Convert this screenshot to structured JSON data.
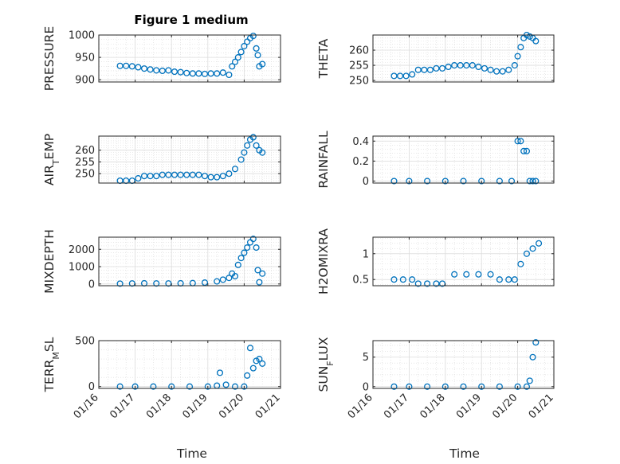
{
  "figure": {
    "title": "Figure 1 medium",
    "xlabel": "Time",
    "marker_color": "#0072BD"
  },
  "chart_data": [
    {
      "type": "scatter",
      "ylabel": "PRESSURE",
      "xlim": [
        "01/16",
        "01/21"
      ],
      "ylim": [
        895,
        1000
      ],
      "yticks": [
        900,
        950,
        1000
      ],
      "grid": true,
      "x": [
        "01/16 14:00",
        "01/16 18:00",
        "01/16 22:00",
        "01/17 02:00",
        "01/17 06:00",
        "01/17 10:00",
        "01/17 14:00",
        "01/17 18:00",
        "01/17 22:00",
        "01/18 02:00",
        "01/18 06:00",
        "01/18 10:00",
        "01/18 14:00",
        "01/18 18:00",
        "01/18 22:00",
        "01/19 02:00",
        "01/19 06:00",
        "01/19 10:00",
        "01/19 14:00",
        "01/19 16:00",
        "01/19 18:00",
        "01/19 20:00",
        "01/19 22:00",
        "01/20 00:00",
        "01/20 02:00",
        "01/20 04:00",
        "01/20 06:00",
        "01/20 08:00",
        "01/20 09:00",
        "01/20 10:00",
        "01/20 12:00"
      ],
      "y": [
        931,
        931,
        930,
        928,
        925,
        923,
        921,
        920,
        921,
        918,
        917,
        915,
        914,
        914,
        913,
        914,
        914,
        916,
        911,
        930,
        940,
        950,
        962,
        975,
        985,
        993,
        998,
        970,
        955,
        930,
        935
      ]
    },
    {
      "type": "scatter",
      "ylabel": "THETA",
      "xlim": [
        "01/16",
        "01/21"
      ],
      "ylim": [
        249.5,
        265
      ],
      "yticks": [
        250,
        255,
        260
      ],
      "grid": true,
      "x": [
        "01/16 14:00",
        "01/16 18:00",
        "01/16 22:00",
        "01/17 02:00",
        "01/17 06:00",
        "01/17 10:00",
        "01/17 14:00",
        "01/17 18:00",
        "01/17 22:00",
        "01/18 02:00",
        "01/18 06:00",
        "01/18 10:00",
        "01/18 14:00",
        "01/18 18:00",
        "01/18 22:00",
        "01/19 02:00",
        "01/19 06:00",
        "01/19 10:00",
        "01/19 14:00",
        "01/19 18:00",
        "01/19 22:00",
        "01/20 00:00",
        "01/20 02:00",
        "01/20 04:00",
        "01/20 06:00",
        "01/20 08:00",
        "01/20 10:00",
        "01/20 12:00"
      ],
      "y": [
        251.5,
        251.5,
        251.5,
        252,
        253.5,
        253.5,
        253.5,
        254,
        254,
        254.5,
        255,
        255,
        255,
        255,
        254.5,
        254,
        253.5,
        253,
        253,
        253.5,
        255,
        258,
        261,
        264,
        265,
        264.5,
        264,
        263
      ]
    },
    {
      "type": "scatter",
      "ylabel": "AIR_TEMP",
      "xlim": [
        "01/16",
        "01/21"
      ],
      "ylim": [
        246,
        266
      ],
      "yticks": [
        250,
        255,
        260
      ],
      "grid": true,
      "x": [
        "01/16 14:00",
        "01/16 18:00",
        "01/16 22:00",
        "01/17 02:00",
        "01/17 06:00",
        "01/17 10:00",
        "01/17 14:00",
        "01/17 18:00",
        "01/17 22:00",
        "01/18 02:00",
        "01/18 06:00",
        "01/18 10:00",
        "01/18 14:00",
        "01/18 18:00",
        "01/18 22:00",
        "01/19 02:00",
        "01/19 06:00",
        "01/19 10:00",
        "01/19 14:00",
        "01/19 18:00",
        "01/19 22:00",
        "01/20 00:00",
        "01/20 02:00",
        "01/20 04:00",
        "01/20 06:00",
        "01/20 08:00",
        "01/20 10:00",
        "01/20 12:00"
      ],
      "y": [
        247,
        247,
        247,
        248,
        249,
        249,
        249,
        249.5,
        249.5,
        249.5,
        249.5,
        249.5,
        249.5,
        249.5,
        249,
        248.5,
        248.5,
        249,
        250,
        252,
        256,
        259,
        262,
        264.5,
        265.5,
        262,
        260,
        259
      ]
    },
    {
      "type": "scatter",
      "ylabel": "RAINFALL",
      "xlim": [
        "01/16",
        "01/21"
      ],
      "ylim": [
        -0.02,
        0.45
      ],
      "yticks": [
        0,
        0.2,
        0.4
      ],
      "grid": true,
      "x": [
        "01/16 14:00",
        "01/17 00:00",
        "01/17 12:00",
        "01/18 00:00",
        "01/18 12:00",
        "01/19 00:00",
        "01/19 12:00",
        "01/19 20:00",
        "01/20 00:00",
        "01/20 02:00",
        "01/20 04:00",
        "01/20 06:00",
        "01/20 08:00",
        "01/20 10:00",
        "01/20 12:00"
      ],
      "y": [
        0,
        0,
        0,
        0,
        0,
        0,
        0,
        0,
        0.4,
        0.4,
        0.3,
        0.3,
        0,
        0,
        0
      ]
    },
    {
      "type": "scatter",
      "ylabel": "MIXDEPTH",
      "xlim": [
        "01/16",
        "01/21"
      ],
      "ylim": [
        -100,
        2700
      ],
      "yticks": [
        0,
        1000,
        2000
      ],
      "grid": true,
      "x": [
        "01/16 14:00",
        "01/16 22:00",
        "01/17 06:00",
        "01/17 14:00",
        "01/17 22:00",
        "01/18 06:00",
        "01/18 14:00",
        "01/18 22:00",
        "01/19 06:00",
        "01/19 10:00",
        "01/19 14:00",
        "01/19 16:00",
        "01/19 18:00",
        "01/19 20:00",
        "01/19 22:00",
        "01/20 00:00",
        "01/20 02:00",
        "01/20 04:00",
        "01/20 06:00",
        "01/20 08:00",
        "01/20 09:00",
        "01/20 10:00",
        "01/20 12:00"
      ],
      "y": [
        20,
        30,
        40,
        30,
        30,
        40,
        50,
        80,
        150,
        250,
        350,
        600,
        450,
        1100,
        1500,
        1800,
        2100,
        2400,
        2600,
        2100,
        800,
        100,
        600
      ]
    },
    {
      "type": "scatter",
      "ylabel": "H2OMIXRA",
      "xlim": [
        "01/16",
        "01/21"
      ],
      "ylim": [
        0.38,
        1.32
      ],
      "yticks": [
        0.5,
        1
      ],
      "grid": true,
      "x": [
        "01/16 14:00",
        "01/16 20:00",
        "01/17 02:00",
        "01/17 06:00",
        "01/17 12:00",
        "01/17 18:00",
        "01/17 22:00",
        "01/18 06:00",
        "01/18 14:00",
        "01/18 22:00",
        "01/19 06:00",
        "01/19 12:00",
        "01/19 18:00",
        "01/19 22:00",
        "01/20 02:00",
        "01/20 06:00",
        "01/20 10:00",
        "01/20 14:00"
      ],
      "y": [
        0.5,
        0.5,
        0.5,
        0.42,
        0.42,
        0.42,
        0.42,
        0.6,
        0.6,
        0.6,
        0.6,
        0.5,
        0.5,
        0.5,
        0.8,
        1.0,
        1.1,
        1.2
      ]
    },
    {
      "type": "scatter",
      "ylabel": "TERR_MSL",
      "xlim": [
        "01/16",
        "01/21"
      ],
      "ylim": [
        -20,
        500
      ],
      "yticks": [
        0,
        500
      ],
      "grid": true,
      "x": [
        "01/16 14:00",
        "01/17 00:00",
        "01/17 12:00",
        "01/18 00:00",
        "01/18 12:00",
        "01/19 00:00",
        "01/19 06:00",
        "01/19 08:00",
        "01/19 12:00",
        "01/19 18:00",
        "01/20 00:00",
        "01/20 02:00",
        "01/20 04:00",
        "01/20 06:00",
        "01/20 08:00",
        "01/20 10:00",
        "01/20 12:00"
      ],
      "y": [
        0,
        0,
        0,
        0,
        0,
        0,
        10,
        150,
        20,
        0,
        0,
        120,
        420,
        200,
        280,
        300,
        250
      ]
    },
    {
      "type": "scatter",
      "ylabel": "SUN_FLUX",
      "xlim": [
        "01/16",
        "01/21"
      ],
      "ylim": [
        -0.3,
        7.8
      ],
      "yticks": [
        0,
        5
      ],
      "grid": true,
      "x": [
        "01/16 14:00",
        "01/17 00:00",
        "01/17 12:00",
        "01/18 00:00",
        "01/18 12:00",
        "01/19 00:00",
        "01/19 12:00",
        "01/20 00:00",
        "01/20 06:00",
        "01/20 08:00",
        "01/20 10:00",
        "01/20 12:00"
      ],
      "y": [
        0,
        0,
        0,
        0,
        0,
        0,
        0,
        0,
        0,
        1,
        5,
        7.5
      ]
    }
  ]
}
